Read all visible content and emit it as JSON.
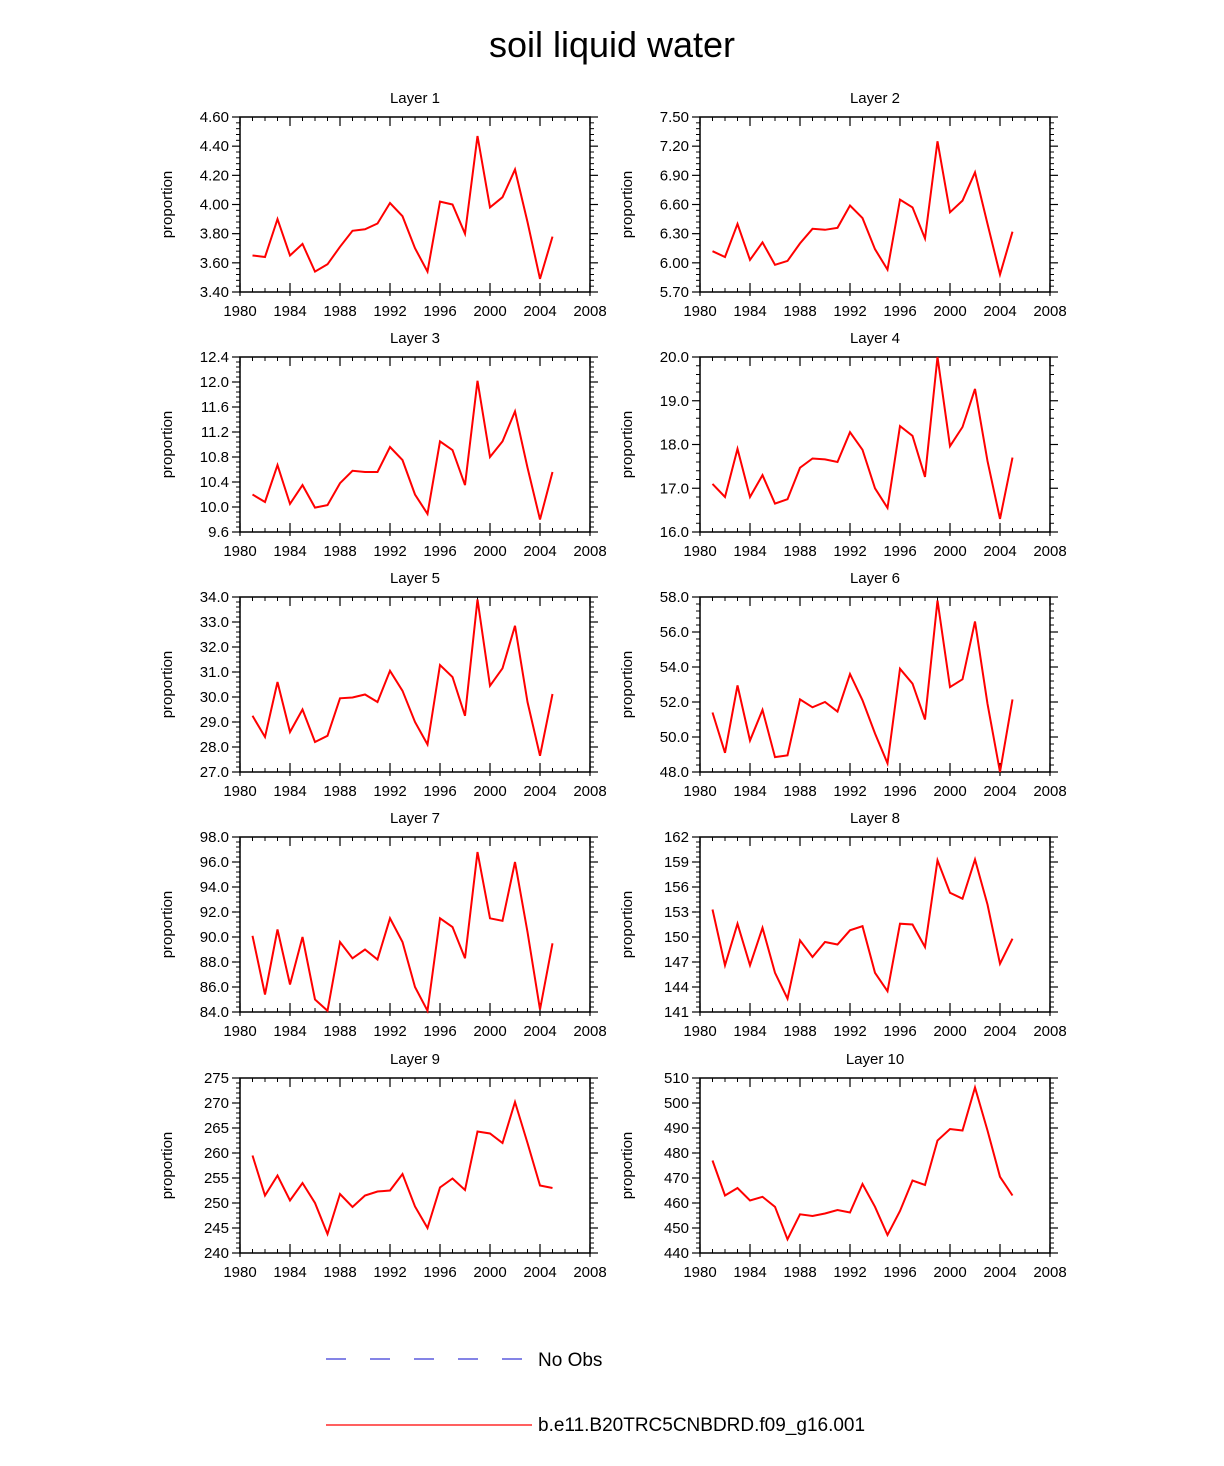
{
  "title": "soil liquid water",
  "colors": {
    "model": "#ff0000",
    "obs": "#3b3bd6",
    "axis": "#000000"
  },
  "legend": {
    "obs_label": "No Obs",
    "model_label": "b.e11.B20TRC5CNBDRD.f09_g16.001"
  },
  "chart_data": [
    {
      "type": "line",
      "title": "Layer 1",
      "ylabel": "proportion",
      "xlim": [
        1980,
        2008
      ],
      "xticks": [
        "1980",
        "1984",
        "1988",
        "1992",
        "1996",
        "2000",
        "2004",
        "2008"
      ],
      "ylim": [
        3.4,
        4.6
      ],
      "yticks": [
        "3.40",
        "3.60",
        "3.80",
        "4.00",
        "4.20",
        "4.40",
        "4.60"
      ],
      "x": [
        1981,
        1982,
        1983,
        1984,
        1985,
        1986,
        1987,
        1988,
        1989,
        1990,
        1991,
        1992,
        1993,
        1994,
        1995,
        1996,
        1997,
        1998,
        1999,
        2000,
        2001,
        2002,
        2003,
        2004,
        2005
      ],
      "values": [
        3.65,
        3.64,
        3.9,
        3.65,
        3.73,
        3.54,
        3.59,
        3.71,
        3.82,
        3.83,
        3.87,
        4.01,
        3.92,
        3.7,
        3.54,
        4.02,
        4.0,
        3.8,
        4.47,
        3.98,
        4.05,
        4.24,
        3.88,
        3.49,
        3.78
      ]
    },
    {
      "type": "line",
      "title": "Layer 2",
      "ylabel": "proportion",
      "xlim": [
        1980,
        2008
      ],
      "xticks": [
        "1980",
        "1984",
        "1988",
        "1992",
        "1996",
        "2000",
        "2004",
        "2008"
      ],
      "ylim": [
        5.7,
        7.5
      ],
      "yticks": [
        "5.70",
        "6.00",
        "6.30",
        "6.60",
        "6.90",
        "7.20",
        "7.50"
      ],
      "x": [
        1981,
        1982,
        1983,
        1984,
        1985,
        1986,
        1987,
        1988,
        1989,
        1990,
        1991,
        1992,
        1993,
        1994,
        1995,
        1996,
        1997,
        1998,
        1999,
        2000,
        2001,
        2002,
        2003,
        2004,
        2005
      ],
      "values": [
        6.12,
        6.06,
        6.4,
        6.03,
        6.21,
        5.98,
        6.02,
        6.2,
        6.35,
        6.34,
        6.36,
        6.59,
        6.46,
        6.14,
        5.93,
        6.65,
        6.57,
        6.25,
        7.25,
        6.52,
        6.64,
        6.93,
        6.4,
        5.88,
        6.32
      ]
    },
    {
      "type": "line",
      "title": "Layer 3",
      "ylabel": "proportion",
      "xlim": [
        1980,
        2008
      ],
      "xticks": [
        "1980",
        "1984",
        "1988",
        "1992",
        "1996",
        "2000",
        "2004",
        "2008"
      ],
      "ylim": [
        9.6,
        12.4
      ],
      "yticks": [
        "9.6",
        "10.0",
        "10.4",
        "10.8",
        "11.2",
        "11.6",
        "12.0",
        "12.4"
      ],
      "x": [
        1981,
        1982,
        1983,
        1984,
        1985,
        1986,
        1987,
        1988,
        1989,
        1990,
        1991,
        1992,
        1993,
        1994,
        1995,
        1996,
        1997,
        1998,
        1999,
        2000,
        2001,
        2002,
        2003,
        2004,
        2005
      ],
      "values": [
        10.2,
        10.08,
        10.67,
        10.05,
        10.35,
        9.99,
        10.03,
        10.38,
        10.58,
        10.56,
        10.56,
        10.96,
        10.75,
        10.2,
        9.89,
        11.05,
        10.91,
        10.35,
        12.02,
        10.8,
        11.05,
        11.53,
        10.63,
        9.8,
        10.56
      ]
    },
    {
      "type": "line",
      "title": "Layer 4",
      "ylabel": "proportion",
      "xlim": [
        1980,
        2008
      ],
      "xticks": [
        "1980",
        "1984",
        "1988",
        "1992",
        "1996",
        "2000",
        "2004",
        "2008"
      ],
      "ylim": [
        16.0,
        20.0
      ],
      "yticks": [
        "16.0",
        "17.0",
        "18.0",
        "19.0",
        "20.0"
      ],
      "x": [
        1981,
        1982,
        1983,
        1984,
        1985,
        1986,
        1987,
        1988,
        1989,
        1990,
        1991,
        1992,
        1993,
        1994,
        1995,
        1996,
        1997,
        1998,
        1999,
        2000,
        2001,
        2002,
        2003,
        2004,
        2005
      ],
      "values": [
        17.1,
        16.8,
        17.9,
        16.8,
        17.3,
        16.65,
        16.75,
        17.47,
        17.68,
        17.66,
        17.6,
        18.28,
        17.88,
        17.0,
        16.55,
        18.42,
        18.2,
        17.26,
        20.0,
        17.96,
        18.4,
        19.27,
        17.62,
        16.3,
        17.7
      ]
    },
    {
      "type": "line",
      "title": "Layer 5",
      "ylabel": "proportion",
      "xlim": [
        1980,
        2008
      ],
      "xticks": [
        "1980",
        "1984",
        "1988",
        "1992",
        "1996",
        "2000",
        "2004",
        "2008"
      ],
      "ylim": [
        27.0,
        34.0
      ],
      "yticks": [
        "27.0",
        "28.0",
        "29.0",
        "30.0",
        "31.0",
        "32.0",
        "33.0",
        "34.0"
      ],
      "x": [
        1981,
        1982,
        1983,
        1984,
        1985,
        1986,
        1987,
        1988,
        1989,
        1990,
        1991,
        1992,
        1993,
        1994,
        1995,
        1996,
        1997,
        1998,
        1999,
        2000,
        2001,
        2002,
        2003,
        2004,
        2005
      ],
      "values": [
        29.25,
        28.4,
        30.6,
        28.6,
        29.5,
        28.2,
        28.45,
        29.95,
        29.98,
        30.1,
        29.8,
        31.05,
        30.25,
        29.0,
        28.1,
        31.28,
        30.8,
        29.25,
        33.9,
        30.45,
        31.15,
        32.85,
        29.8,
        27.65,
        30.12
      ]
    },
    {
      "type": "line",
      "title": "Layer 6",
      "ylabel": "proportion",
      "xlim": [
        1980,
        2008
      ],
      "xticks": [
        "1980",
        "1984",
        "1988",
        "1992",
        "1996",
        "2000",
        "2004",
        "2008"
      ],
      "ylim": [
        48.0,
        58.0
      ],
      "yticks": [
        "48.0",
        "50.0",
        "52.0",
        "54.0",
        "56.0",
        "58.0"
      ],
      "x": [
        1981,
        1982,
        1983,
        1984,
        1985,
        1986,
        1987,
        1988,
        1989,
        1990,
        1991,
        1992,
        1993,
        1994,
        1995,
        1996,
        1997,
        1998,
        1999,
        2000,
        2001,
        2002,
        2003,
        2004,
        2005
      ],
      "values": [
        51.4,
        49.1,
        52.95,
        49.8,
        51.55,
        48.85,
        48.95,
        52.15,
        51.7,
        52.0,
        51.45,
        53.6,
        52.1,
        50.2,
        48.5,
        53.9,
        53.05,
        51.0,
        57.8,
        52.85,
        53.3,
        56.6,
        51.9,
        48.0,
        52.15
      ]
    },
    {
      "type": "line",
      "title": "Layer 7",
      "ylabel": "proportion",
      "xlim": [
        1980,
        2008
      ],
      "xticks": [
        "1980",
        "1984",
        "1988",
        "1992",
        "1996",
        "2000",
        "2004",
        "2008"
      ],
      "ylim": [
        84.0,
        98.0
      ],
      "yticks": [
        "84.0",
        "86.0",
        "88.0",
        "90.0",
        "92.0",
        "94.0",
        "96.0",
        "98.0"
      ],
      "x": [
        1981,
        1982,
        1983,
        1984,
        1985,
        1986,
        1987,
        1988,
        1989,
        1990,
        1991,
        1992,
        1993,
        1994,
        1995,
        1996,
        1997,
        1998,
        1999,
        2000,
        2001,
        2002,
        2003,
        2004,
        2005
      ],
      "values": [
        90.1,
        85.4,
        90.6,
        86.2,
        90.0,
        85.0,
        84.1,
        89.6,
        88.3,
        89.0,
        88.2,
        91.5,
        89.6,
        86.0,
        84.1,
        91.5,
        90.8,
        88.3,
        96.8,
        91.5,
        91.3,
        96.0,
        90.4,
        84.2,
        89.5
      ]
    },
    {
      "type": "line",
      "title": "Layer 8",
      "ylabel": "proportion",
      "xlim": [
        1980,
        2008
      ],
      "xticks": [
        "1980",
        "1984",
        "1988",
        "1992",
        "1996",
        "2000",
        "2004",
        "2008"
      ],
      "ylim": [
        141,
        162
      ],
      "yticks": [
        "141",
        "144",
        "147",
        "150",
        "153",
        "156",
        "159",
        "162"
      ],
      "x": [
        1981,
        1982,
        1983,
        1984,
        1985,
        1986,
        1987,
        1988,
        1989,
        1990,
        1991,
        1992,
        1993,
        1994,
        1995,
        1996,
        1997,
        1998,
        1999,
        2000,
        2001,
        2002,
        2003,
        2004,
        2005
      ],
      "values": [
        153.3,
        146.6,
        151.6,
        146.6,
        151.1,
        145.7,
        142.6,
        149.6,
        147.6,
        149.4,
        149.1,
        150.8,
        151.3,
        145.7,
        143.5,
        151.6,
        151.5,
        148.8,
        159.2,
        155.3,
        154.6,
        159.3,
        153.9,
        146.8,
        149.8
      ]
    },
    {
      "type": "line",
      "title": "Layer 9",
      "ylabel": "proportion",
      "xlim": [
        1980,
        2008
      ],
      "xticks": [
        "1980",
        "1984",
        "1988",
        "1992",
        "1996",
        "2000",
        "2004",
        "2008"
      ],
      "ylim": [
        240,
        275
      ],
      "yticks": [
        "240",
        "245",
        "250",
        "255",
        "260",
        "265",
        "270",
        "275"
      ],
      "x": [
        1981,
        1982,
        1983,
        1984,
        1985,
        1986,
        1987,
        1988,
        1989,
        1990,
        1991,
        1992,
        1993,
        1994,
        1995,
        1996,
        1997,
        1998,
        1999,
        2000,
        2001,
        2002,
        2003,
        2004,
        2005
      ],
      "values": [
        259.5,
        251.5,
        255.5,
        250.5,
        254.0,
        250.0,
        243.8,
        251.8,
        249.2,
        251.5,
        252.3,
        252.5,
        255.8,
        249.3,
        245.0,
        253.1,
        254.9,
        252.6,
        264.3,
        263.9,
        262.0,
        270.2,
        262.0,
        253.5,
        253.0
      ]
    },
    {
      "type": "line",
      "title": "Layer 10",
      "ylabel": "proportion",
      "xlim": [
        1980,
        2008
      ],
      "xticks": [
        "1980",
        "1984",
        "1988",
        "1992",
        "1996",
        "2000",
        "2004",
        "2008"
      ],
      "ylim": [
        440,
        510
      ],
      "yticks": [
        "440",
        "450",
        "460",
        "470",
        "480",
        "490",
        "500",
        "510"
      ],
      "x": [
        1981,
        1982,
        1983,
        1984,
        1985,
        1986,
        1987,
        1988,
        1989,
        1990,
        1991,
        1992,
        1993,
        1994,
        1995,
        1996,
        1997,
        1998,
        1999,
        2000,
        2001,
        2002,
        2003,
        2004,
        2005
      ],
      "values": [
        477,
        463,
        466,
        461,
        462.5,
        458.5,
        445.5,
        455.5,
        454.8,
        455.8,
        457.2,
        456.2,
        467.6,
        458.5,
        447.2,
        456.8,
        469,
        467.2,
        485,
        489.6,
        489,
        506.2,
        489,
        470.5,
        463
      ]
    }
  ]
}
